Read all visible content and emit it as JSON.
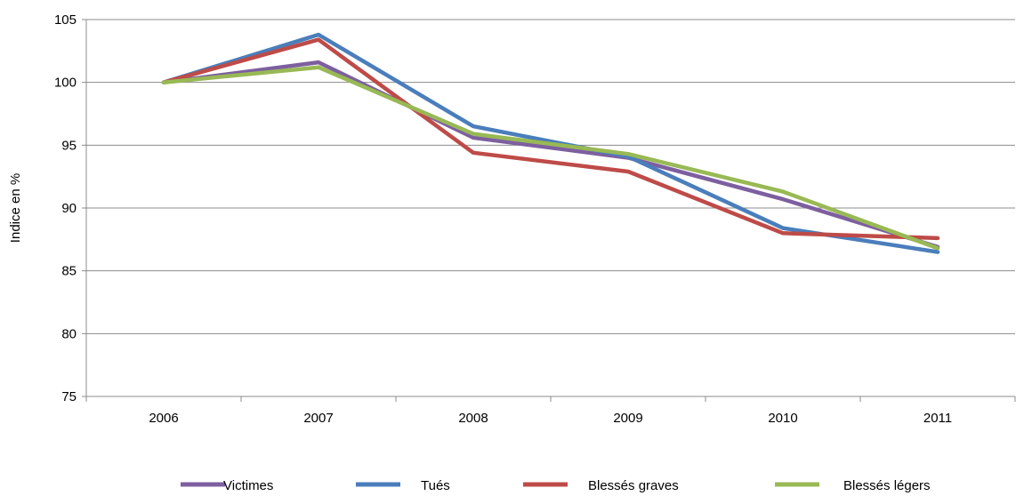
{
  "chart_data": {
    "type": "line",
    "title": "",
    "xlabel": "",
    "ylabel": "Indice en %",
    "categories": [
      "2006",
      "2007",
      "2008",
      "2009",
      "2010",
      "2011"
    ],
    "ylim": [
      75,
      105
    ],
    "yticks": [
      75,
      80,
      85,
      90,
      95,
      100,
      105
    ],
    "grid": "horizontal",
    "legend_position": "bottom",
    "series": [
      {
        "name": "Victimes",
        "color": "#7d5fa0",
        "values": [
          100,
          101.6,
          95.6,
          94.0,
          90.7,
          86.9
        ]
      },
      {
        "name": "Tués",
        "color": "#4a7ebb",
        "values": [
          100,
          103.8,
          96.5,
          94.1,
          88.4,
          86.5
        ]
      },
      {
        "name": "Blessés graves",
        "color": "#be4b48",
        "values": [
          100,
          103.4,
          94.4,
          92.9,
          88.0,
          87.6
        ]
      },
      {
        "name": "Blessés légers",
        "color": "#98b954",
        "values": [
          100,
          101.2,
          95.9,
          94.3,
          91.3,
          86.8
        ]
      }
    ]
  }
}
